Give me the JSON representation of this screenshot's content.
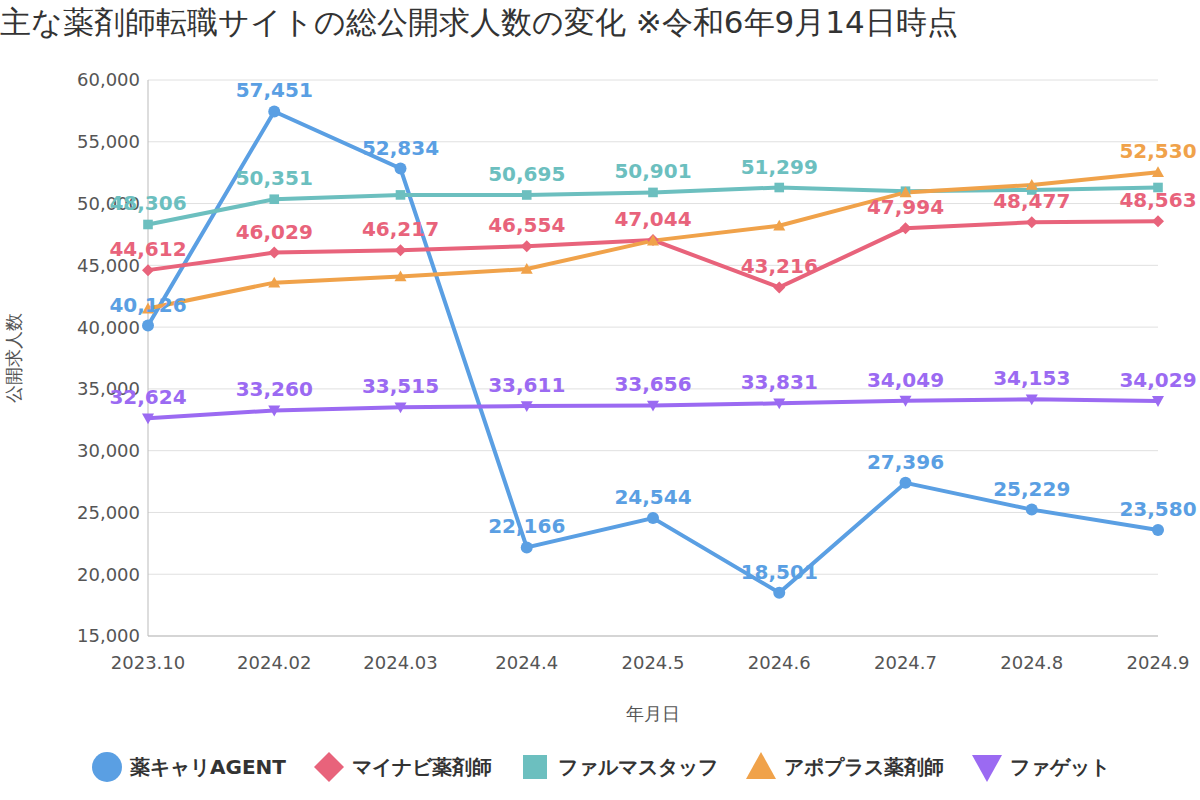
{
  "chart_data": {
    "type": "line",
    "title": "主な薬剤師転職サイトの総公開求人数の変化 ※令和6年9月14日時点",
    "x_label": "年月日",
    "y_label": "公開求人数",
    "categories": [
      "2023.10",
      "2024.02",
      "2024.03",
      "2024.4",
      "2024.5",
      "2024.6",
      "2024.7",
      "2024.8",
      "2024.9"
    ],
    "ylim": [
      15000,
      60000
    ],
    "yticks": [
      {
        "value": 15000,
        "label": "15,000"
      },
      {
        "value": 20000,
        "label": "20,000"
      },
      {
        "value": 25000,
        "label": "25,000"
      },
      {
        "value": 30000,
        "label": "30,000"
      },
      {
        "value": 35000,
        "label": "35,000"
      },
      {
        "value": 40000,
        "label": "40,000"
      },
      {
        "value": 45000,
        "label": "45,000"
      },
      {
        "value": 50000,
        "label": "50,000"
      },
      {
        "value": 55000,
        "label": "55,000"
      },
      {
        "value": 60000,
        "label": "60,000"
      }
    ],
    "grid": true,
    "legend": "bottom",
    "data_labels": true,
    "series": [
      {
        "name": "薬キャリAGENT",
        "color": "#5a9fe3",
        "marker": "circle",
        "values": [
          40126,
          57451,
          52834,
          22166,
          24544,
          18501,
          27396,
          25229,
          23580
        ],
        "value_labels": [
          "40,126",
          "57,451",
          "52,834",
          "22,166",
          "24,544",
          "18,501",
          "27,396",
          "25,229",
          "23,580"
        ]
      },
      {
        "name": "マイナビ薬剤師",
        "color": "#e8637b",
        "marker": "diamond",
        "values": [
          44612,
          46029,
          46217,
          46554,
          47044,
          43216,
          47994,
          48477,
          48563
        ],
        "value_labels": [
          "44,612",
          "46,029",
          "46,217",
          "46,554",
          "47,044",
          "43,216",
          "47,994",
          "48,477",
          "48,563"
        ]
      },
      {
        "name": "ファルマスタッフ",
        "color": "#6cbfbf",
        "marker": "square",
        "values": [
          48306,
          50351,
          50700,
          50695,
          50901,
          51299,
          51000,
          51100,
          51300
        ],
        "value_labels": [
          "48,306",
          "50,351",
          null,
          "50,695",
          "50,901",
          "51,299",
          null,
          null,
          null
        ]
      },
      {
        "name": "アポプラス薬剤師",
        "color": "#f0a24a",
        "marker": "triangle",
        "values": [
          41500,
          43600,
          44100,
          44700,
          47000,
          48200,
          50900,
          51500,
          52530
        ],
        "value_labels": [
          null,
          null,
          null,
          null,
          null,
          null,
          null,
          null,
          "52,530"
        ]
      },
      {
        "name": "ファゲット",
        "color": "#9b6af2",
        "marker": "triangle-down",
        "values": [
          32624,
          33260,
          33515,
          33611,
          33656,
          33831,
          34049,
          34153,
          34029
        ],
        "value_labels": [
          "32,624",
          "33,260",
          "33,515",
          "33,611",
          "33,656",
          "33,831",
          "34,049",
          "34,153",
          "34,029"
        ]
      }
    ]
  }
}
